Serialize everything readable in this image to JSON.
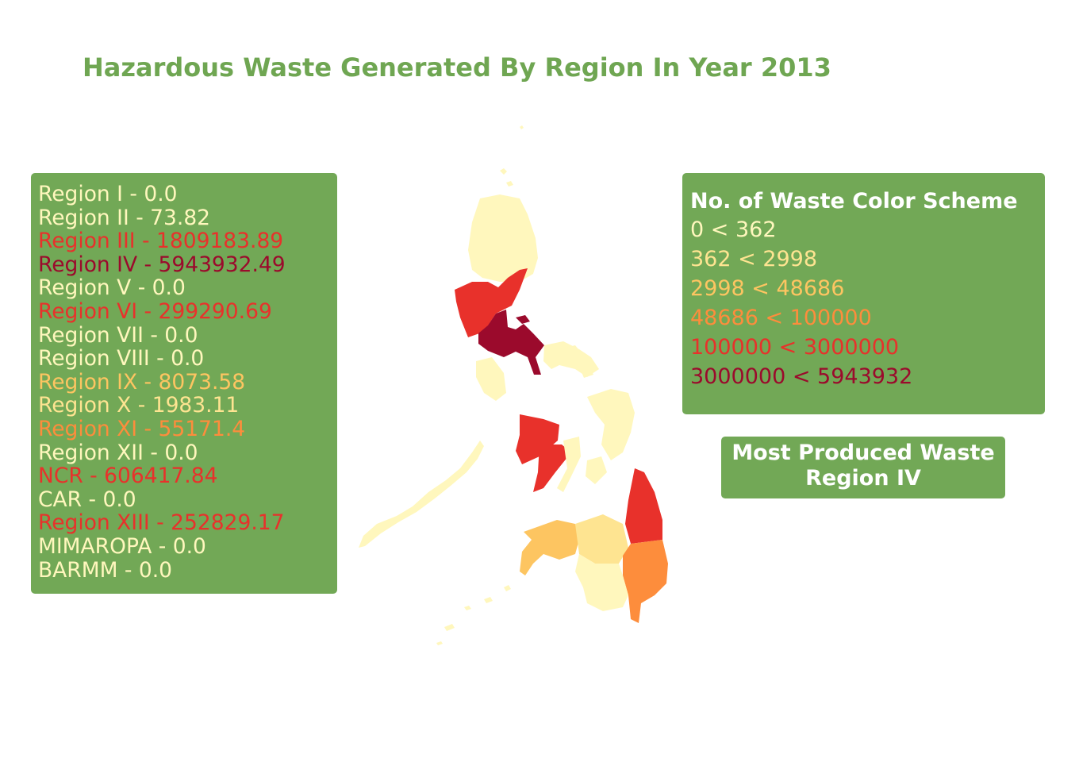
{
  "title": "Hazardous Waste Generated By Region In Year 2013",
  "colors": {
    "panel_bg": "#72a856",
    "title": "#6fa652",
    "scale": [
      "#fff7bd",
      "#fee491",
      "#fdc561",
      "#fd8d3c",
      "#e8312b",
      "#9b0a2c"
    ]
  },
  "regions": [
    {
      "label": "Region I - 0.0",
      "value": 0.0,
      "color": "#fff7bd"
    },
    {
      "label": "Region II - 73.82",
      "value": 73.82,
      "color": "#fff7bd"
    },
    {
      "label": "Region III - 1809183.89",
      "value": 1809183.89,
      "color": "#e8312b"
    },
    {
      "label": "Region IV - 5943932.49",
      "value": 5943932.49,
      "color": "#9b0a2c"
    },
    {
      "label": "Region V - 0.0",
      "value": 0.0,
      "color": "#fff7bd"
    },
    {
      "label": "Region VI - 299290.69",
      "value": 299290.69,
      "color": "#e8312b"
    },
    {
      "label": "Region VII - 0.0",
      "value": 0.0,
      "color": "#fff7bd"
    },
    {
      "label": "Region VIII - 0.0",
      "value": 0.0,
      "color": "#fff7bd"
    },
    {
      "label": "Region IX - 8073.58",
      "value": 8073.58,
      "color": "#fdc561"
    },
    {
      "label": "Region X - 1983.11",
      "value": 1983.11,
      "color": "#fee491"
    },
    {
      "label": "Region XI - 55171.4",
      "value": 55171.4,
      "color": "#fd8d3c"
    },
    {
      "label": "Region XII - 0.0",
      "value": 0.0,
      "color": "#fff7bd"
    },
    {
      "label": "NCR - 606417.84",
      "value": 606417.84,
      "color": "#e8312b"
    },
    {
      "label": "CAR - 0.0",
      "value": 0.0,
      "color": "#fff7bd"
    },
    {
      "label": "Region XIII - 252829.17",
      "value": 252829.17,
      "color": "#e8312b"
    },
    {
      "label": "MIMAROPA - 0.0",
      "value": 0.0,
      "color": "#fff7bd"
    },
    {
      "label": "BARMM - 0.0",
      "value": 0.0,
      "color": "#fff7bd"
    }
  ],
  "scheme": {
    "title": "No. of Waste Color Scheme",
    "ranges": [
      {
        "label": "0 < 362",
        "color": "#fff7bd"
      },
      {
        "label": "362 < 2998",
        "color": "#fee491"
      },
      {
        "label": "2998 < 48686",
        "color": "#fdc561"
      },
      {
        "label": "48686 < 100000",
        "color": "#fd8d3c"
      },
      {
        "label": "100000 < 3000000",
        "color": "#e8312b"
      },
      {
        "label": "3000000 < 5943932",
        "color": "#9b0a2c"
      }
    ]
  },
  "most_produced": {
    "line1": "Most Produced Waste",
    "line2": "Region IV"
  },
  "map_regions": [
    {
      "name": "Region I",
      "color": "#fff7bd"
    },
    {
      "name": "CAR",
      "color": "#fff7bd"
    },
    {
      "name": "Region II",
      "color": "#fff7bd"
    },
    {
      "name": "Region III",
      "color": "#e8312b"
    },
    {
      "name": "NCR",
      "color": "#e8312b"
    },
    {
      "name": "Region IV",
      "color": "#9b0a2c"
    },
    {
      "name": "Region V",
      "color": "#fff7bd"
    },
    {
      "name": "MIMAROPA",
      "color": "#fff7bd"
    },
    {
      "name": "Region VI",
      "color": "#e8312b"
    },
    {
      "name": "Region VII",
      "color": "#fff7bd"
    },
    {
      "name": "Region VIII",
      "color": "#fff7bd"
    },
    {
      "name": "Region IX",
      "color": "#fdc561"
    },
    {
      "name": "Region X",
      "color": "#fee491"
    },
    {
      "name": "Region XIII",
      "color": "#e8312b"
    },
    {
      "name": "Region XI",
      "color": "#fd8d3c"
    },
    {
      "name": "Region XII",
      "color": "#fff7bd"
    },
    {
      "name": "BARMM",
      "color": "#fff7bd"
    }
  ]
}
